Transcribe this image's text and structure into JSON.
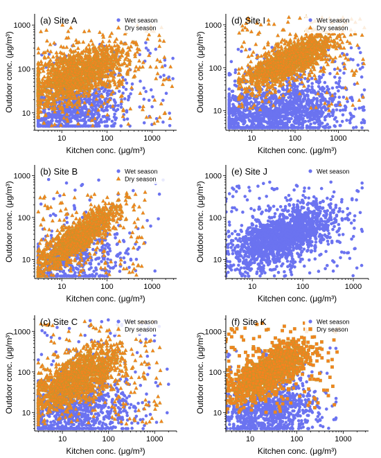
{
  "figure": {
    "x_axis_label": "Kitchen conc. (μg/m³)",
    "y_axis_label": "Outdoor conc. (μg/m³)"
  },
  "colors": {
    "wet": "#6b73f0",
    "dry": "#f5821f",
    "dry_marker_edge": "#b99a2e"
  },
  "chart_data": [
    {
      "type": "scatter",
      "panel": "(a)",
      "title": "(a) Site A",
      "xlabel": "Kitchen conc. (μg/m³)",
      "ylabel": "Outdoor conc. (μg/m³)",
      "x_scale": "log",
      "y_scale": "log",
      "x_ticks": [
        10,
        100,
        1000
      ],
      "x_tick_labels": [
        "10",
        "100",
        "1000"
      ],
      "y_ticks": [
        10,
        100,
        1000
      ],
      "y_tick_labels": [
        "10",
        "100",
        "1000"
      ],
      "xlim": [
        2.5,
        3500
      ],
      "ylim": [
        4,
        1800
      ],
      "legend": "top-right",
      "series": [
        {
          "name": "Wet season",
          "marker": "circle",
          "color": "#6b73f0",
          "x_range": [
            3,
            3000
          ],
          "y_range": [
            5,
            400
          ]
        },
        {
          "name": "Dry season",
          "marker": "triangle",
          "color": "#f5821f",
          "x_range": [
            3,
            3000
          ],
          "y_range": [
            5,
            1000
          ]
        }
      ]
    },
    {
      "type": "scatter",
      "panel": "(d)",
      "title": "(d) Site I",
      "xlabel": "Kitchen conc. (μg/m³)",
      "ylabel": "Outdoor conc. (μg/m³)",
      "x_scale": "log",
      "y_scale": "log",
      "x_ticks": [
        10,
        100,
        1000
      ],
      "x_tick_labels": [
        "10",
        "100",
        "1000"
      ],
      "y_ticks": [
        10,
        100,
        1000
      ],
      "y_tick_labels": [
        "10",
        "100",
        "1000"
      ],
      "xlim": [
        2.5,
        5000
      ],
      "ylim": [
        3.5,
        1800
      ],
      "legend": "top-right",
      "series": [
        {
          "name": "Wet season",
          "marker": "circle",
          "color": "#6b73f0",
          "x_range": [
            3,
            4000
          ],
          "y_range": [
            4,
            300
          ]
        },
        {
          "name": "Dry season",
          "marker": "triangle",
          "color": "#f5821f",
          "x_range": [
            5,
            4000
          ],
          "y_range": [
            10,
            1600
          ]
        }
      ]
    },
    {
      "type": "scatter",
      "panel": "(b)",
      "title": "(b) Site B",
      "xlabel": "Kitchen conc. (μg/m³)",
      "ylabel": "Outdoor conc. (μg/m³)",
      "x_scale": "log",
      "y_scale": "log",
      "x_ticks": [
        10,
        100,
        1000
      ],
      "x_tick_labels": [
        "10",
        "100",
        "1000"
      ],
      "y_ticks": [
        10,
        100,
        1000
      ],
      "y_tick_labels": [
        "10",
        "100",
        "1000"
      ],
      "xlim": [
        2.5,
        3500
      ],
      "ylim": [
        3.5,
        1800
      ],
      "legend": "top-right",
      "series": [
        {
          "name": "Wet season",
          "marker": "circle",
          "color": "#6b73f0",
          "x_range": [
            3,
            2000
          ],
          "y_range": [
            4,
            900
          ]
        },
        {
          "name": "Dry season",
          "marker": "triangle",
          "color": "#f5821f",
          "x_range": [
            3,
            700
          ],
          "y_range": [
            4,
            400
          ]
        }
      ]
    },
    {
      "type": "scatter",
      "panel": "(e)",
      "title": "(e) Site J",
      "xlabel": "Kitchen conc. (μg/m³)",
      "ylabel": "Outdoor conc. (μg/m³)",
      "x_scale": "log",
      "y_scale": "log",
      "x_ticks": [
        10,
        100,
        1000
      ],
      "x_tick_labels": [
        "10",
        "100",
        "1000"
      ],
      "y_ticks": [
        10,
        100,
        1000
      ],
      "y_tick_labels": [
        "10",
        "100",
        "1000"
      ],
      "xlim": [
        3,
        2000
      ],
      "ylim": [
        3.5,
        1800
      ],
      "legend": "top-right",
      "series": [
        {
          "name": "Wet season",
          "marker": "circle",
          "color": "#6b73f0",
          "x_range": [
            3,
            1500
          ],
          "y_range": [
            4,
            700
          ]
        }
      ]
    },
    {
      "type": "scatter",
      "panel": "(c)",
      "title": "(c) Site C",
      "xlabel": "Kitchen conc. (μg/m³)",
      "ylabel": "Outdoor conc. (μg/m³)",
      "x_scale": "log",
      "y_scale": "log",
      "x_ticks": [
        10,
        100,
        1000
      ],
      "x_tick_labels": [
        "10",
        "100",
        "1000"
      ],
      "y_ticks": [
        10,
        100,
        1000
      ],
      "y_tick_labels": [
        "10",
        "100",
        "1000"
      ],
      "xlim": [
        2.5,
        3000
      ],
      "ylim": [
        3.5,
        2500
      ],
      "legend": "top-right",
      "series": [
        {
          "name": "Wet season",
          "marker": "circle",
          "color": "#6b73f0",
          "x_range": [
            3,
            2000
          ],
          "y_range": [
            4,
            2000
          ]
        },
        {
          "name": "Dry season",
          "marker": "triangle",
          "color": "#f5821f",
          "x_range": [
            3,
            1500
          ],
          "y_range": [
            5,
            1800
          ]
        }
      ]
    },
    {
      "type": "scatter",
      "panel": "(f)",
      "title": "(f) Site K",
      "xlabel": "Kitchen conc. (μg/m³)",
      "ylabel": "Outdoor conc. (μg/m³)",
      "x_scale": "log",
      "y_scale": "log",
      "x_ticks": [
        10,
        100,
        1000
      ],
      "x_tick_labels": [
        "10",
        "100",
        "1000"
      ],
      "y_ticks": [
        10,
        100,
        1000
      ],
      "y_tick_labels": [
        "10",
        "100",
        "1000"
      ],
      "xlim": [
        3,
        3500
      ],
      "ylim": [
        3.5,
        2500
      ],
      "legend": "top-right",
      "series": [
        {
          "name": "Wet season",
          "marker": "circle",
          "color": "#6b73f0",
          "x_range": [
            3,
            700
          ],
          "y_range": [
            4,
            400
          ]
        },
        {
          "name": "Dry season",
          "marker": "square",
          "color": "#f5821f",
          "x_range": [
            3,
            800
          ],
          "y_range": [
            10,
            1600
          ]
        }
      ]
    }
  ]
}
